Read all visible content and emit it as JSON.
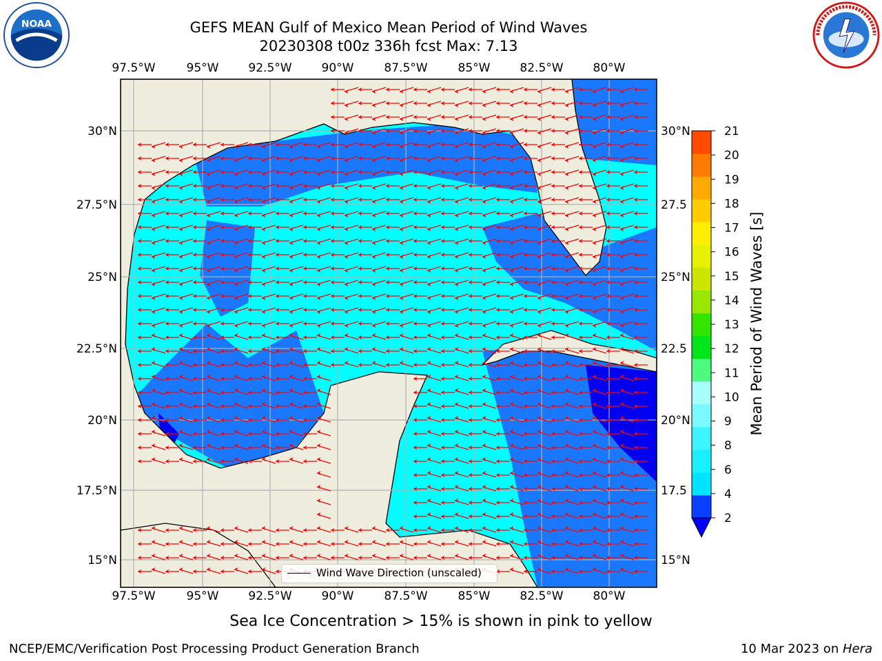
{
  "title_line1": "GEFS MEAN Gulf of Mexico Mean Period of Wind Waves",
  "title_line2": "20230308 t00z 336h fcst   Max: 7.13",
  "x_ticks": [
    "97.5°W",
    "95°W",
    "92.5°W",
    "90°W",
    "87.5°W",
    "85°W",
    "82.5°W",
    "80°W"
  ],
  "y_ticks": [
    "30°N",
    "27.5°N",
    "25°N",
    "22.5°N",
    "20°N",
    "17.5°N",
    "15°N"
  ],
  "y_ticks_right": [
    "30°N",
    "27.5",
    "25°N",
    "22.5",
    "20°N",
    "17.5",
    "15°N"
  ],
  "legend_label": "Wind Wave Direction (unscaled)",
  "colorbar": {
    "label": "Mean Period of Wind Waves [s]",
    "ticks": [
      "2",
      "4",
      "6",
      "8",
      "9",
      "10",
      "11",
      "12",
      "13",
      "14",
      "15",
      "16",
      "17",
      "18",
      "19",
      "20",
      "21"
    ],
    "colors": [
      "#0a3fff",
      "#00e5ff",
      "#19f0ff",
      "#3cf5ff",
      "#7afaff",
      "#a6fffa",
      "#4dfc7e",
      "#00e61a",
      "#33e600",
      "#99e600",
      "#cce600",
      "#e6f000",
      "#ffee00",
      "#ffcc00",
      "#ffaa00",
      "#ff7a00",
      "#ff4a00",
      "#ff0000"
    ],
    "extend_color": "#0000ff"
  },
  "map_colors": {
    "land": "#efedde",
    "band_2_4": "#1a78ff",
    "band_4_6": "#00ffff",
    "band_lt2": "#0000f0",
    "arrow": "#ff0000",
    "grid": "#b0b0b0"
  },
  "ice_note": "Sea Ice Concentration > 15% is shown in pink to yellow",
  "branch": "NCEP/EMC/Verification Post Processing Product Generation Branch",
  "date_prefix": "10 Mar 2023 on ",
  "date_host": "Hera",
  "logos": {
    "left": "noaa-logo",
    "right": "nws-logo",
    "noaa_text": "NOAA"
  }
}
